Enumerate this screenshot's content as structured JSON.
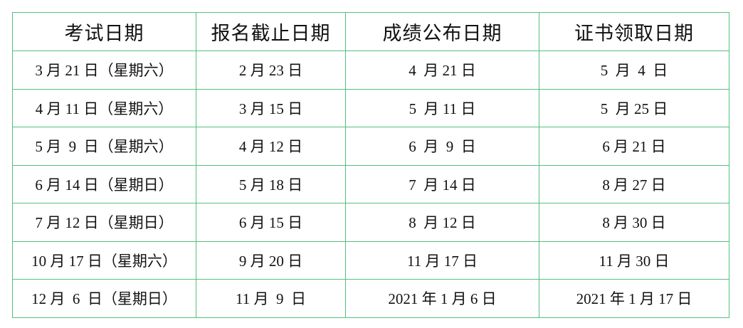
{
  "table": {
    "headers": [
      "考试日期",
      "报名截止日期",
      "成绩公布日期",
      "证书领取日期"
    ],
    "rows": [
      [
        "3 月 21 日（星期六）",
        "2 月 23 日",
        "4  月 21 日",
        "5  月  4  日"
      ],
      [
        "4 月 11 日（星期六）",
        "3 月 15 日",
        "5  月 11 日",
        "5  月 25 日"
      ],
      [
        "5 月  9  日（星期六）",
        "4 月 12 日",
        "6  月  9  日",
        "6 月 21 日"
      ],
      [
        "6 月 14 日（星期日）",
        "5 月 18 日",
        "7  月 14 日",
        "8 月 27 日"
      ],
      [
        "7 月 12 日（星期日）",
        "6 月 15 日",
        "8  月 12 日",
        "8 月 30 日"
      ],
      [
        "10 月 17 日（星期六）",
        "9 月 20 日",
        "11 月 17 日",
        "11 月 30 日"
      ],
      [
        "12 月  6  日（星期日）",
        "11 月  9  日",
        "2021 年 1 月 6 日",
        "2021 年 1 月 17 日"
      ]
    ]
  }
}
